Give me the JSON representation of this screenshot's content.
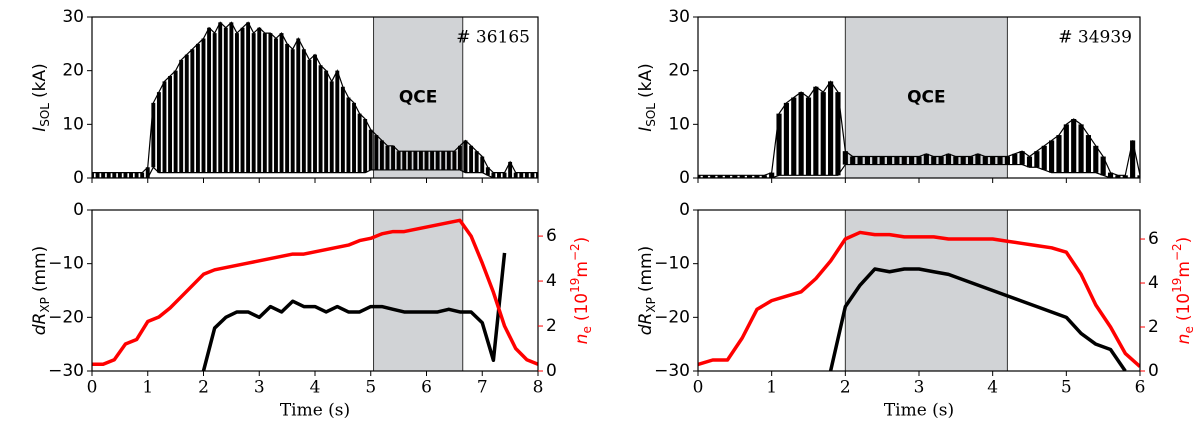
{
  "chart_data": [
    {
      "type": "band",
      "annotation": "# 36165",
      "span": [
        5.05,
        6.65
      ],
      "span_label": "QCE",
      "ylabel": {
        "symbol": "I",
        "sub": "SOL",
        "unit": "(kA)"
      },
      "xlim": [
        0,
        8
      ],
      "xticks": [
        0,
        1,
        2,
        3,
        4,
        5,
        6,
        7,
        8
      ],
      "xtick_labels": false,
      "ylim": [
        0,
        30
      ],
      "yticks": [
        0,
        10,
        20,
        30
      ],
      "x": [
        0,
        0.1,
        0.2,
        0.3,
        0.4,
        0.5,
        0.6,
        0.7,
        0.8,
        0.9,
        1,
        1.1,
        1.2,
        1.3,
        1.4,
        1.5,
        1.6,
        1.7,
        1.8,
        1.9,
        2,
        2.1,
        2.2,
        2.3,
        2.4,
        2.5,
        2.6,
        2.7,
        2.8,
        2.9,
        3,
        3.1,
        3.2,
        3.3,
        3.4,
        3.5,
        3.6,
        3.7,
        3.8,
        3.9,
        4,
        4.1,
        4.2,
        4.3,
        4.4,
        4.5,
        4.6,
        4.7,
        4.8,
        4.9,
        5,
        5.1,
        5.2,
        5.3,
        5.4,
        5.5,
        5.6,
        5.7,
        5.8,
        5.9,
        6,
        6.1,
        6.2,
        6.3,
        6.4,
        6.5,
        6.6,
        6.7,
        6.8,
        6.9,
        7,
        7.1,
        7.2,
        7.3,
        7.4,
        7.5,
        7.6,
        7.7,
        7.8,
        7.9,
        8
      ],
      "series": [
        {
          "color": "#000000",
          "values": [
            1,
            1,
            1,
            1,
            1,
            1,
            1,
            1,
            1,
            1,
            2,
            14,
            16,
            18,
            19,
            20,
            22,
            23,
            24,
            25,
            26,
            28,
            27,
            29,
            28,
            29,
            27,
            28,
            29,
            27,
            28,
            27,
            27,
            26,
            27,
            25,
            24,
            26,
            24,
            22,
            23,
            21,
            20,
            18,
            20,
            17,
            15,
            14,
            12,
            11,
            9,
            8,
            7,
            6,
            6,
            5,
            5,
            5,
            5,
            5,
            5,
            5,
            5,
            5,
            5,
            5,
            6,
            7,
            6,
            5,
            4,
            2,
            1,
            1,
            1,
            3,
            1,
            1,
            1,
            1,
            1
          ],
          "lower": [
            0,
            0,
            0,
            0,
            0,
            0,
            0,
            0,
            0,
            0,
            0,
            2,
            1,
            1,
            1,
            1,
            1,
            1,
            1,
            1,
            1,
            1,
            1,
            1,
            1,
            1,
            1,
            1,
            1,
            1,
            1,
            1,
            1,
            1,
            1,
            1,
            1,
            1,
            1,
            1,
            1,
            1,
            1,
            1,
            1,
            1,
            1,
            1,
            1,
            1,
            1.5,
            1.5,
            1.5,
            1.5,
            1.5,
            1.5,
            1.5,
            1.5,
            1.5,
            1.5,
            1.5,
            1.5,
            1.5,
            1.5,
            1.5,
            1.5,
            1.5,
            1,
            1,
            1,
            1,
            0.5,
            0,
            0,
            0,
            0,
            0,
            0,
            0,
            0,
            0
          ]
        }
      ]
    },
    {
      "type": "line",
      "span": [
        5.05,
        6.65
      ],
      "xlabel": "Time (s)",
      "ylabel": {
        "symbol": "dR",
        "sub": "XP",
        "unit": "(mm)"
      },
      "y2label": {
        "symbol": "n",
        "sub": "e",
        "unit": "(10",
        "exp": "19",
        "unit2": "m",
        "exp2": "−2",
        "close": ")"
      },
      "xlim": [
        0,
        8
      ],
      "xticks": [
        0,
        1,
        2,
        3,
        4,
        5,
        6,
        7,
        8
      ],
      "xtick_labels": true,
      "ylim": [
        -30,
        0
      ],
      "yticks": [
        {
          "value": -30,
          "label": "−30"
        },
        {
          "value": -20,
          "label": "−20"
        },
        {
          "value": -10,
          "label": "−10"
        },
        0
      ],
      "y2lim": [
        0,
        7.16
      ],
      "y2ticks": [
        0,
        2,
        4,
        6
      ],
      "y2color": "#ff0000",
      "x": [
        0,
        0.2,
        0.4,
        0.6,
        0.8,
        1,
        1.2,
        1.4,
        1.6,
        1.8,
        2,
        2.2,
        2.4,
        2.6,
        2.8,
        3,
        3.2,
        3.4,
        3.6,
        3.8,
        4,
        4.2,
        4.4,
        4.6,
        4.8,
        5,
        5.2,
        5.4,
        5.6,
        5.8,
        6,
        6.2,
        6.4,
        6.6,
        6.8,
        7,
        7.2,
        7.4,
        7.6,
        7.8,
        8
      ],
      "series": [
        {
          "color": "#000000",
          "values": [
            null,
            null,
            null,
            null,
            null,
            null,
            null,
            null,
            null,
            null,
            -30,
            -22,
            -20,
            -19,
            -19,
            -20,
            -18,
            -19,
            -17,
            -18,
            -18,
            -19,
            -18,
            -19,
            -19,
            -18,
            -18,
            -18.5,
            -19,
            -19,
            -19,
            -19,
            -18.5,
            -19,
            -19,
            -21,
            -28,
            -8,
            null,
            null,
            null
          ]
        },
        {
          "color": "#ff0000",
          "axis": "y2",
          "values": [
            0.3,
            0.3,
            0.5,
            1.2,
            1.4,
            2.2,
            2.4,
            2.8,
            3.3,
            3.8,
            4.3,
            4.5,
            4.6,
            4.7,
            4.8,
            4.9,
            5.0,
            5.1,
            5.2,
            5.2,
            5.3,
            5.4,
            5.5,
            5.6,
            5.8,
            5.9,
            6.1,
            6.2,
            6.2,
            6.3,
            6.4,
            6.5,
            6.6,
            6.7,
            6.0,
            4.8,
            3.5,
            2.0,
            1.0,
            0.5,
            0.3
          ]
        }
      ]
    },
    {
      "type": "band",
      "annotation": "# 34939",
      "span": [
        2.0,
        4.2
      ],
      "span_label": "QCE",
      "ylabel": {
        "symbol": "I",
        "sub": "SOL",
        "unit": "(kA)"
      },
      "xlim": [
        0,
        6
      ],
      "xticks": [
        0,
        1,
        2,
        3,
        4,
        5,
        6
      ],
      "xtick_labels": false,
      "ylim": [
        0,
        30
      ],
      "yticks": [
        0,
        10,
        20,
        30
      ],
      "x": [
        0,
        0.1,
        0.2,
        0.3,
        0.4,
        0.5,
        0.6,
        0.7,
        0.8,
        0.9,
        1,
        1.1,
        1.2,
        1.3,
        1.4,
        1.5,
        1.6,
        1.7,
        1.8,
        1.9,
        2,
        2.1,
        2.2,
        2.3,
        2.4,
        2.5,
        2.6,
        2.7,
        2.8,
        2.9,
        3,
        3.1,
        3.2,
        3.3,
        3.4,
        3.5,
        3.6,
        3.7,
        3.8,
        3.9,
        4,
        4.1,
        4.2,
        4.3,
        4.4,
        4.5,
        4.6,
        4.7,
        4.8,
        4.9,
        5,
        5.1,
        5.2,
        5.3,
        5.4,
        5.5,
        5.6,
        5.7,
        5.8,
        5.9,
        6
      ],
      "series": [
        {
          "color": "#000000",
          "values": [
            0.5,
            0.5,
            0.5,
            0.5,
            0.5,
            0.5,
            0.5,
            0.5,
            0.5,
            0.5,
            1,
            12,
            14,
            15,
            16,
            15,
            17,
            16,
            18,
            16,
            5,
            4,
            4,
            4,
            4,
            4,
            4,
            4,
            4,
            4,
            4,
            4.5,
            4,
            4,
            4.5,
            4,
            4,
            4,
            4.5,
            4,
            4,
            4,
            4,
            4.5,
            5,
            4,
            5,
            6,
            7,
            8,
            10,
            11,
            10,
            8,
            6,
            4,
            1,
            0.5,
            0.5,
            7,
            0.5
          ],
          "lower": [
            0,
            0,
            0,
            0,
            0,
            0,
            0,
            0,
            0,
            0,
            0,
            0.5,
            0.5,
            0.5,
            0.5,
            0.5,
            0.5,
            0.5,
            0.5,
            0.5,
            2.5,
            2.5,
            2.5,
            2.5,
            2.5,
            2.5,
            2.5,
            2.5,
            2.5,
            2.5,
            2.5,
            2.5,
            2.5,
            2.5,
            2.5,
            2.5,
            2.5,
            2.5,
            2.5,
            2.5,
            2.5,
            2.5,
            2.5,
            2.5,
            2.5,
            2,
            2,
            1.5,
            1,
            1,
            1,
            1,
            1,
            1,
            1,
            0.5,
            0,
            0,
            0,
            0,
            0
          ]
        }
      ]
    },
    {
      "type": "line",
      "span": [
        2.0,
        4.2
      ],
      "xlabel": "Time (s)",
      "ylabel": {
        "symbol": "dR",
        "sub": "XP",
        "unit": "(mm)"
      },
      "y2label": {
        "symbol": "n",
        "sub": "e",
        "unit": "(10",
        "exp": "19",
        "unit2": "m",
        "exp2": "−2",
        "close": ")"
      },
      "xlim": [
        0,
        6
      ],
      "xticks": [
        0,
        1,
        2,
        3,
        4,
        5,
        6
      ],
      "xtick_labels": true,
      "ylim": [
        -30,
        0
      ],
      "yticks": [
        {
          "value": -30,
          "label": "−30"
        },
        {
          "value": -20,
          "label": "−20"
        },
        {
          "value": -10,
          "label": "−10"
        },
        0
      ],
      "y2lim": [
        0,
        7.32
      ],
      "y2ticks": [
        0,
        2,
        4,
        6
      ],
      "y2color": "#ff0000",
      "x": [
        0,
        0.2,
        0.4,
        0.6,
        0.8,
        1,
        1.2,
        1.4,
        1.6,
        1.8,
        2,
        2.2,
        2.4,
        2.6,
        2.8,
        3,
        3.2,
        3.4,
        3.6,
        3.8,
        4,
        4.2,
        4.4,
        4.6,
        4.8,
        5,
        5.2,
        5.4,
        5.6,
        5.8,
        6
      ],
      "series": [
        {
          "color": "#000000",
          "values": [
            null,
            null,
            null,
            null,
            null,
            null,
            null,
            null,
            null,
            -30,
            -18,
            -14,
            -11,
            -11.5,
            -11,
            -11,
            -11.5,
            -12,
            -13,
            -14,
            -15,
            -16,
            -17,
            -18,
            -19,
            -20,
            -23,
            -25,
            -26,
            -30,
            null
          ]
        },
        {
          "color": "#ff0000",
          "axis": "y2",
          "values": [
            0.3,
            0.5,
            0.5,
            1.5,
            2.8,
            3.2,
            3.4,
            3.6,
            4.2,
            5.0,
            6.0,
            6.3,
            6.2,
            6.2,
            6.1,
            6.1,
            6.1,
            6.0,
            6.0,
            6.0,
            6.0,
            5.9,
            5.8,
            5.7,
            5.6,
            5.4,
            4.4,
            3.0,
            2.0,
            0.8,
            0.2
          ]
        }
      ]
    }
  ]
}
